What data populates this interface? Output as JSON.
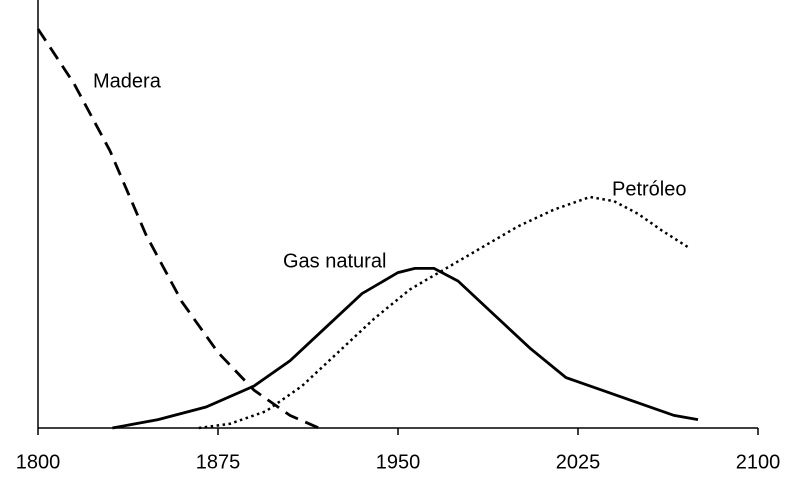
{
  "chart_data": {
    "type": "line",
    "xlim": [
      1800,
      2100
    ],
    "xticks": [
      1800,
      1875,
      1950,
      2025,
      2100
    ],
    "ylim": [
      0,
      100
    ],
    "series": [
      {
        "name": "Madera",
        "color": "#000000",
        "dash": "dashed",
        "x": [
          1800,
          1815,
          1830,
          1845,
          1860,
          1875,
          1890,
          1905,
          1917
        ],
        "values": [
          95,
          82,
          66,
          46,
          30,
          18,
          9,
          3,
          0
        ]
      },
      {
        "name": "Gas natural",
        "color": "#000000",
        "dash": "solid",
        "x": [
          1831,
          1850,
          1870,
          1890,
          1905,
          1920,
          1935,
          1950,
          1957,
          1965,
          1975,
          1990,
          2005,
          2020,
          2035,
          2050,
          2065,
          2075
        ],
        "values": [
          0,
          2,
          5,
          10,
          16,
          24,
          32,
          37,
          38,
          38,
          35,
          27,
          19,
          12,
          9,
          6,
          3,
          2
        ]
      },
      {
        "name": "Petróleo",
        "color": "#000000",
        "dash": "dotted",
        "x": [
          1867,
          1880,
          1895,
          1910,
          1925,
          1940,
          1955,
          1970,
          1985,
          2000,
          2015,
          2030,
          2040,
          2050,
          2060,
          2071
        ],
        "values": [
          0,
          1,
          4,
          10,
          18,
          26,
          33,
          38,
          43,
          48,
          52,
          55,
          54,
          51,
          47,
          43
        ]
      }
    ]
  }
}
